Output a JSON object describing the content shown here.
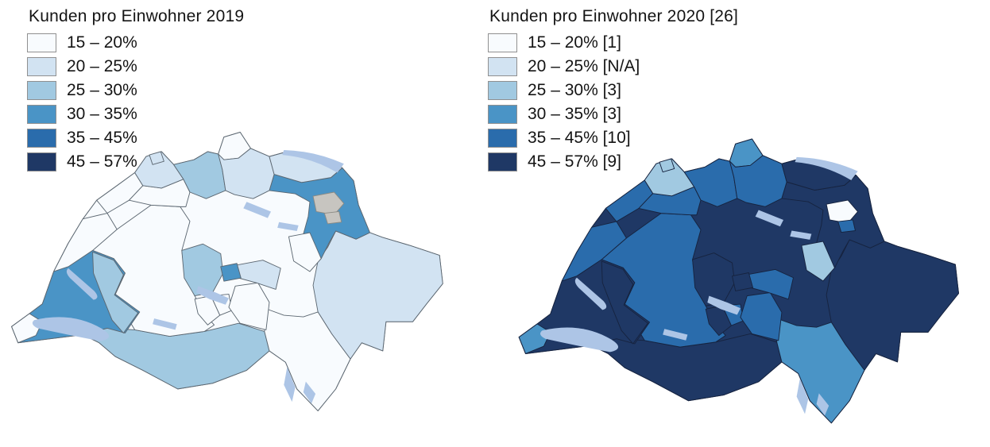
{
  "palette": {
    "class_colors": {
      "15-20": "#f8fbfe",
      "20-25": "#d2e3f2",
      "25-30": "#a1c9e1",
      "30-35": "#4a94c6",
      "35-45": "#2a6cac",
      "45-57": "#1f3865"
    },
    "no_data_color": "#c7c5c0",
    "no_data_border": "#8b8a84",
    "lake_color": "#adc5e6"
  },
  "maps": [
    {
      "id": "2019",
      "title": "Kunden pro Einwohner 2019",
      "border_color": "#5b6670",
      "base_class": "15-20",
      "legend": [
        {
          "class": "15-20",
          "label": "15 – 20%"
        },
        {
          "class": "20-25",
          "label": "20 – 25%"
        },
        {
          "class": "25-30",
          "label": "25 – 30%"
        },
        {
          "class": "30-35",
          "label": "30 – 35%"
        },
        {
          "class": "35-45",
          "label": "35 – 45%"
        },
        {
          "class": "45-57",
          "label": "45 – 57%"
        }
      ],
      "cantons": {
        "GE": "15-20",
        "VD": "30-35",
        "VS": "25-30",
        "NE": "15-20",
        "FR": "25-30",
        "JU": "15-20",
        "BE": "15-20",
        "SO": "15-20",
        "BS": "20-25",
        "BL": "20-25",
        "AG": "25-30",
        "LU": "25-30",
        "ZG": "30-35",
        "SZ": "20-25",
        "UR": "15-20",
        "OW": "15-20",
        "NW": "15-20",
        "GL": "15-20",
        "ZH": "20-25",
        "SH": "15-20",
        "TG": "20-25",
        "SG": "30-35",
        "AR": "no-data",
        "AI": "no-data",
        "GR": "20-25",
        "TI": "15-20"
      }
    },
    {
      "id": "2020",
      "title": "Kunden pro Einwohner 2020 [26]",
      "border_color": "#16233f",
      "base_class": "45-57",
      "legend": [
        {
          "class": "15-20",
          "label": "15 – 20% [1]"
        },
        {
          "class": "20-25",
          "label": "20 – 25% [N/A]"
        },
        {
          "class": "25-30",
          "label": "25 – 30% [3]"
        },
        {
          "class": "30-35",
          "label": "30 – 35% [3]"
        },
        {
          "class": "35-45",
          "label": "35 – 45% [10]"
        },
        {
          "class": "45-57",
          "label": "45 – 57% [9]"
        }
      ],
      "cantons": {
        "GE": "30-35",
        "VD": "45-57",
        "VS": "45-57",
        "NE": "35-45",
        "FR": "45-57",
        "JU": "35-45",
        "BE": "35-45",
        "SO": "35-45",
        "BS": "25-30",
        "BL": "25-30",
        "AG": "35-45",
        "LU": "45-57",
        "ZG": "45-57",
        "SZ": "35-45",
        "UR": "35-45",
        "OW": "45-57",
        "NW": "35-45",
        "GL": "25-30",
        "ZH": "35-45",
        "SH": "30-35",
        "TG": "45-57",
        "SG": "45-57",
        "AR": "15-20",
        "AI": "35-45",
        "GR": "45-57",
        "TI": "30-35"
      }
    }
  ]
}
